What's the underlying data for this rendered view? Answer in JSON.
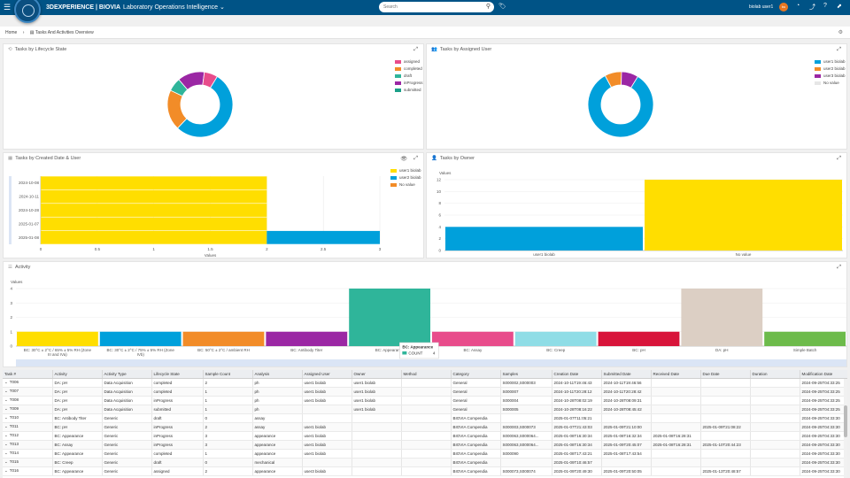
{
  "topbar": {
    "brand": "3DEXPERIENCE | BIOVIA",
    "app": "Laboratory Operations Intelligence ⌄",
    "search_placeholder": "Search",
    "user": "biolab user1",
    "avatar": "bu"
  },
  "breadcrumb": {
    "home": "Home",
    "sep": "›",
    "page": "Tasks And Activities Overview"
  },
  "panels": {
    "lifecycle": {
      "title": "Tasks by Lifecycle State",
      "legend": [
        {
          "label": "assigned",
          "color": "#e84c8b"
        },
        {
          "label": "completed",
          "color": "#f28c28"
        },
        {
          "label": "draft",
          "color": "#2fb59a"
        },
        {
          "label": "inProgress",
          "color": "#9b27a4"
        },
        {
          "label": "submitted",
          "color": "#1aa088"
        }
      ]
    },
    "assigned_user": {
      "title": "Tasks by Assigned User",
      "legend": [
        {
          "label": "user1 biolab",
          "color": "#00a0db"
        },
        {
          "label": "user2 biolab",
          "color": "#f28c28"
        },
        {
          "label": "user3 biolab",
          "color": "#9b27a4"
        },
        {
          "label": "No value",
          "color": "#e6e6e6"
        }
      ]
    },
    "created_date": {
      "title": "Tasks by Created Date & User",
      "legend": [
        {
          "label": "user1 biolab",
          "color": "#ffde00"
        },
        {
          "label": "user2 biolab",
          "color": "#00a0db"
        },
        {
          "label": "No value",
          "color": "#f28c28"
        }
      ]
    },
    "owner": {
      "title": "Tasks by Owner"
    },
    "activity": {
      "title": "Activity"
    }
  },
  "chart_data": [
    {
      "type": "pie",
      "labels": [
        "submitted",
        "completed",
        "draft",
        "inProgress",
        "assigned"
      ],
      "values": [
        8,
        3,
        1,
        2,
        1
      ],
      "colors": [
        "#00a0db",
        "#f28c28",
        "#2fb59a",
        "#9b27a4",
        "#e84c8b"
      ],
      "donut": true,
      "legend": "top-right"
    },
    {
      "type": "pie",
      "labels": [
        "user1 biolab",
        "user2 biolab",
        "user3 biolab"
      ],
      "values": [
        10,
        1,
        1
      ],
      "colors": [
        "#00a0db",
        "#f28c28",
        "#9b27a4"
      ],
      "donut": true,
      "legend": "top-right"
    },
    {
      "type": "bar",
      "orientation": "horizontal",
      "stacked": true,
      "categories": [
        "2024-10-08",
        "2024-10-11",
        "2024-10-28",
        "2025-01-07",
        "2025-01-08"
      ],
      "series": [
        {
          "name": "user1 biolab",
          "values": [
            2,
            2,
            2,
            2,
            2
          ],
          "color": "#ffde00"
        },
        {
          "name": "user2 biolab",
          "values": [
            0,
            0,
            0,
            0,
            1
          ],
          "color": "#00a0db"
        }
      ],
      "xlabel": "Values",
      "xticks": [
        "0",
        "0.5",
        "1",
        "1.5",
        "2",
        "2.5",
        "3"
      ],
      "xlim": [
        0,
        3
      ],
      "legend": "top-right"
    },
    {
      "type": "bar",
      "categories": [
        "user1 biolab",
        "No value"
      ],
      "values": [
        4,
        12
      ],
      "colors": [
        "#00a0db",
        "#ffde00"
      ],
      "ylabel": "Values",
      "yticks": [
        "0",
        "2",
        "4",
        "6",
        "8",
        "10",
        "12"
      ],
      "ylim": [
        0,
        12
      ]
    },
    {
      "type": "bar",
      "categories": [
        "BC: 30°C ± 2°C / 65% ± 5% RH (Zone III and IVa)",
        "BC: 30°C ± 2°C / 75% ± 5% RH (Zone IVb)",
        "BC: 50°C ± 2°C / ambient RH",
        "BC: Antibody Titer",
        "BC: Appearance",
        "BC: Assay",
        "BC: Creep",
        "BC: pH",
        "DA: pH",
        "Simple Batch"
      ],
      "values": [
        1,
        1,
        1,
        1,
        4,
        1,
        1,
        1,
        4,
        1
      ],
      "colors": [
        "#ffde00",
        "#00a0db",
        "#f28c28",
        "#9b27a4",
        "#2fb59a",
        "#e84c8b",
        "#8fdde6",
        "#d8143a",
        "#dccfc4",
        "#6dbb4b"
      ],
      "ylabel": "Values",
      "yticks": [
        "0",
        "1",
        "2",
        "3",
        "4"
      ],
      "ylim": [
        0,
        4
      ],
      "tooltip": {
        "title": "BC: Appearance",
        "label": "COUNT",
        "value": "4"
      }
    }
  ],
  "table": {
    "columns": [
      "Task #",
      "Activity",
      "Activity Type",
      "Lifecycle State",
      "Sample Count",
      "Analysis",
      "Assigned User",
      "Owner",
      "Method",
      "Category",
      "Samples",
      "Creation Date",
      "Submitted Date",
      "Received Date",
      "Due Date",
      "Duration",
      "Modification Date"
    ],
    "rows": [
      [
        "T006",
        "DA: pH",
        "Data Acquisition",
        "completed",
        "2",
        "ph",
        "user1 biolab",
        "user1 biolab",
        "",
        "General",
        "S000002,S000003",
        "2024-10-11T19:46:43",
        "2024-10-11T19:46:56",
        "",
        "",
        "",
        "2024-09-25T04:33:25"
      ],
      [
        "T007",
        "DA: pH",
        "Data Acquisition",
        "completed",
        "1",
        "ph",
        "user1 biolab",
        "user1 biolab",
        "",
        "General",
        "S000007",
        "2024-10-11T20:28:12",
        "2024-10-11T20:28:42",
        "",
        "",
        "",
        "2024-09-25T04:33:25"
      ],
      [
        "T008",
        "DA: pH",
        "Data Acquisition",
        "inProgress",
        "1",
        "ph",
        "user1 biolab",
        "user1 biolab",
        "",
        "General",
        "S000004",
        "2024-10-28T08:02:19",
        "2024-10-28T08:09:31",
        "",
        "",
        "",
        "2024-09-25T04:33:25"
      ],
      [
        "T009",
        "DA: pH",
        "Data Acquisition",
        "submitted",
        "1",
        "ph",
        "",
        "user1 biolab",
        "",
        "General",
        "S000005",
        "2024-10-28T08:16:22",
        "2024-10-28T08:45:42",
        "",
        "",
        "",
        "2024-09-25T04:33:25"
      ],
      [
        "T010",
        "BC: Antibody Titer",
        "Generic",
        "draft",
        "0",
        "assay",
        "",
        "",
        "",
        "BIOVIA Compendia",
        "",
        "2025-01-07T11:05:21",
        "",
        "",
        "",
        "",
        "2024-09-25T04:33:30"
      ],
      [
        "T011",
        "BC: pH",
        "Generic",
        "inProgress",
        "2",
        "assay",
        "user1 biolab",
        "",
        "",
        "BIOVIA Compendia",
        "S000003,S000073",
        "2025-01-07T21:43:03",
        "2025-01-09T21:10:00",
        "",
        "2025-01-09T21:08:22",
        "",
        "2024-09-25T04:33:30"
      ],
      [
        "T012",
        "BC: Appearance",
        "Generic",
        "inProgress",
        "3",
        "appearance",
        "user1 biolab",
        "",
        "",
        "BIOVIA Compendia",
        "S000063,S000064...",
        "2025-01-08T16:30:34",
        "2025-01-08T16:32:34",
        "2025-01-08T16:28:31",
        "",
        "",
        "2024-09-25T04:33:30"
      ],
      [
        "T013",
        "BC: Assay",
        "Generic",
        "inProgress",
        "3",
        "appearance",
        "user1 biolab",
        "",
        "",
        "BIOVIA Compendia",
        "S000063,S000064...",
        "2025-01-08T16:30:34",
        "2025-01-09T20:45:07",
        "2025-01-08T16:28:31",
        "2025-01-10T20:44:23",
        "",
        "2024-09-25T04:33:30"
      ],
      [
        "T014",
        "BC: Appearance",
        "Generic",
        "completed",
        "1",
        "appearance",
        "user1 biolab",
        "",
        "",
        "BIOVIA Compendia",
        "S000090",
        "2025-01-08T17:43:21",
        "2025-01-08T17:43:54",
        "",
        "",
        "",
        "2024-09-25T04:33:30"
      ],
      [
        "T015",
        "BC: Creep",
        "Generic",
        "draft",
        "0",
        "mechanical",
        "",
        "",
        "",
        "BIOVIA Compendia",
        "",
        "2025-01-09T10:46:57",
        "",
        "",
        "",
        "",
        "2024-09-25T04:33:30"
      ],
      [
        "T016",
        "BC: Appearance",
        "Generic",
        "assigned",
        "2",
        "appearance",
        "user3 biolab",
        "",
        "",
        "BIOVIA Compendia",
        "S000073,S000074",
        "2025-01-09T20:49:30",
        "2025-01-09T20:50:05",
        "",
        "2025-01-13T20:48:57",
        "",
        "2024-09-25T04:33:30"
      ]
    ]
  }
}
